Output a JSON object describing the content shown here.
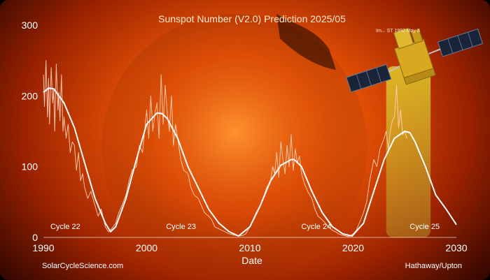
{
  "chart_data": {
    "type": "line",
    "title": "Sunspot Number (V2.0) Prediction 2025/05",
    "xlabel": "Date",
    "ylabel": "",
    "xlim": [
      1990,
      2030
    ],
    "ylim": [
      0,
      300
    ],
    "x_ticks": [
      1990,
      2000,
      2010,
      2020,
      2030
    ],
    "y_ticks": [
      0,
      100,
      200,
      300
    ],
    "grid": false,
    "cycles": [
      {
        "label": "Cycle 22",
        "x": 1990.0
      },
      {
        "label": "Cycle 23",
        "x": 2001.2
      },
      {
        "label": "Cycle 24",
        "x": 2014.3
      },
      {
        "label": "Cycle 25",
        "x": 2024.8
      }
    ],
    "prediction_window": [
      2023.2,
      2027.5
    ],
    "series": [
      {
        "style": "smooth-fit",
        "color": "#ffffff",
        "x": [
          1990.0,
          1990.5,
          1991.0,
          1992.0,
          1993.0,
          1994.0,
          1995.0,
          1996.0,
          1996.5,
          1997.0,
          1998.0,
          1999.0,
          2000.0,
          2001.0,
          2001.5,
          2002.0,
          2003.0,
          2004.0,
          2005.0,
          2006.0,
          2007.0,
          2008.0,
          2008.9,
          2010.0,
          2011.0,
          2012.0,
          2013.0,
          2014.0,
          2014.3,
          2015.0,
          2016.0,
          2017.0,
          2018.0,
          2019.0,
          2019.9,
          2021.0,
          2022.0,
          2023.0,
          2024.0,
          2025.0,
          2025.5,
          2026.0,
          2027.0,
          2028.0,
          2029.0,
          2030.0
        ],
        "y": [
          205,
          211,
          210,
          190,
          155,
          105,
          55,
          20,
          8,
          15,
          55,
          110,
          160,
          176,
          175,
          168,
          140,
          100,
          70,
          40,
          20,
          8,
          2,
          15,
          45,
          80,
          102,
          110,
          110,
          100,
          65,
          35,
          15,
          5,
          2,
          20,
          65,
          110,
          140,
          150,
          148,
          135,
          100,
          60,
          40,
          18
        ]
      },
      {
        "style": "monthly-values",
        "color": "#ffd0b8",
        "x": [
          1990.0,
          1990.1,
          1990.25,
          1990.4,
          1990.5,
          1990.6,
          1990.75,
          1990.9,
          1991.0,
          1991.1,
          1991.25,
          1991.4,
          1991.5,
          1991.6,
          1991.75,
          1991.9,
          1992.0,
          1992.2,
          1992.4,
          1992.6,
          1992.8,
          1993.0,
          1993.2,
          1993.4,
          1993.6,
          1993.8,
          1994.0,
          1994.3,
          1994.6,
          1995.0,
          1995.3,
          1995.6,
          1996.0,
          1996.3,
          1996.6,
          1997.0,
          1997.3,
          1997.6,
          1998.0,
          1998.3,
          1998.6,
          1999.0,
          1999.3,
          1999.6,
          2000.0,
          2000.2,
          2000.4,
          2000.6,
          2000.8,
          2001.0,
          2001.2,
          2001.4,
          2001.6,
          2001.8,
          2002.0,
          2002.2,
          2002.4,
          2002.6,
          2002.8,
          2003.0,
          2003.3,
          2003.6,
          2004.0,
          2004.3,
          2004.6,
          2005.0,
          2005.3,
          2005.6,
          2006.0,
          2006.3,
          2006.6,
          2007.0,
          2007.3,
          2007.6,
          2008.0,
          2008.3,
          2008.6,
          2009.0,
          2009.3,
          2009.6,
          2010.0,
          2010.3,
          2010.6,
          2011.0,
          2011.3,
          2011.6,
          2012.0,
          2012.2,
          2012.4,
          2012.6,
          2012.8,
          2013.0,
          2013.2,
          2013.4,
          2013.6,
          2013.8,
          2014.0,
          2014.2,
          2014.4,
          2014.6,
          2014.8,
          2015.0,
          2015.3,
          2015.6,
          2016.0,
          2016.3,
          2016.6,
          2017.0,
          2017.3,
          2017.6,
          2018.0,
          2018.3,
          2018.6,
          2019.0,
          2019.3,
          2019.6,
          2020.0,
          2020.3,
          2020.6,
          2021.0,
          2021.3,
          2021.6,
          2022.0,
          2022.3,
          2022.6,
          2023.0,
          2023.2,
          2023.4,
          2023.6,
          2023.8,
          2024.0,
          2024.2,
          2024.4,
          2024.6,
          2024.8,
          2025.0,
          2025.2
        ],
        "y": [
          230,
          185,
          250,
          170,
          225,
          160,
          240,
          190,
          210,
          150,
          245,
          180,
          205,
          165,
          230,
          150,
          170,
          140,
          160,
          120,
          135,
          130,
          95,
          120,
          80,
          90,
          70,
          55,
          65,
          45,
          30,
          40,
          15,
          8,
          12,
          20,
          35,
          45,
          60,
          80,
          95,
          100,
          130,
          120,
          180,
          140,
          200,
          150,
          175,
          190,
          140,
          230,
          160,
          215,
          175,
          150,
          200,
          130,
          160,
          140,
          110,
          95,
          90,
          70,
          60,
          55,
          45,
          35,
          30,
          25,
          15,
          12,
          10,
          8,
          5,
          4,
          3,
          2,
          3,
          5,
          15,
          25,
          35,
          45,
          55,
          70,
          80,
          100,
          90,
          120,
          85,
          135,
          110,
          90,
          130,
          100,
          145,
          95,
          125,
          105,
          115,
          90,
          75,
          65,
          55,
          40,
          30,
          25,
          20,
          15,
          10,
          8,
          5,
          3,
          2,
          1,
          5,
          10,
          20,
          35,
          50,
          80,
          110,
          100,
          125,
          140,
          150,
          125,
          150,
          165,
          170,
          215,
          155,
          180,
          145,
          150,
          140
        ]
      }
    ]
  },
  "overlay": {
    "left_caption": "SolarCycleScience.com",
    "right_caption": "Hathaway/Upton",
    "image_caption": "Im... ST 1992 May 8"
  },
  "colors": {
    "background": "#e14f05",
    "highlight": "#d8d020",
    "line": "#ffffff"
  }
}
